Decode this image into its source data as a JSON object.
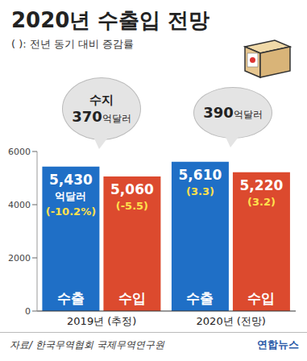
{
  "chart_data": {
    "type": "bar",
    "title": "2020년 수출입 전망",
    "subtitle": "( ): 전년 동기 대비 증감률",
    "categories": [
      "2019년 (추정)",
      "2020년 (전망)"
    ],
    "series": [
      {
        "name": "수출",
        "color": "#1f6fc6",
        "values": [
          5430,
          5610
        ],
        "value_labels": [
          "5,430 억달러",
          "5,610"
        ],
        "changes": [
          -10.2,
          3.3
        ],
        "change_labels": [
          "(-10.2%)",
          "(3.3)"
        ]
      },
      {
        "name": "수입",
        "color": "#dc4a2e",
        "values": [
          5060,
          5220
        ],
        "value_labels": [
          "5,060",
          "5,220"
        ],
        "changes": [
          -5.5,
          3.2
        ],
        "change_labels": [
          "(-5.5)",
          "(3.2)"
        ]
      }
    ],
    "annotations": [
      {
        "label": "수지",
        "value": 370,
        "unit": "억달러"
      },
      {
        "value": 390,
        "unit": "억달러"
      }
    ],
    "ylim": [
      0,
      6000
    ],
    "yticks": [
      0,
      2000,
      4000,
      6000
    ],
    "grid": false,
    "data_labels": true,
    "source": "자료/ 한국무역협회 국제무역연구원",
    "credit": "연합뉴스"
  }
}
